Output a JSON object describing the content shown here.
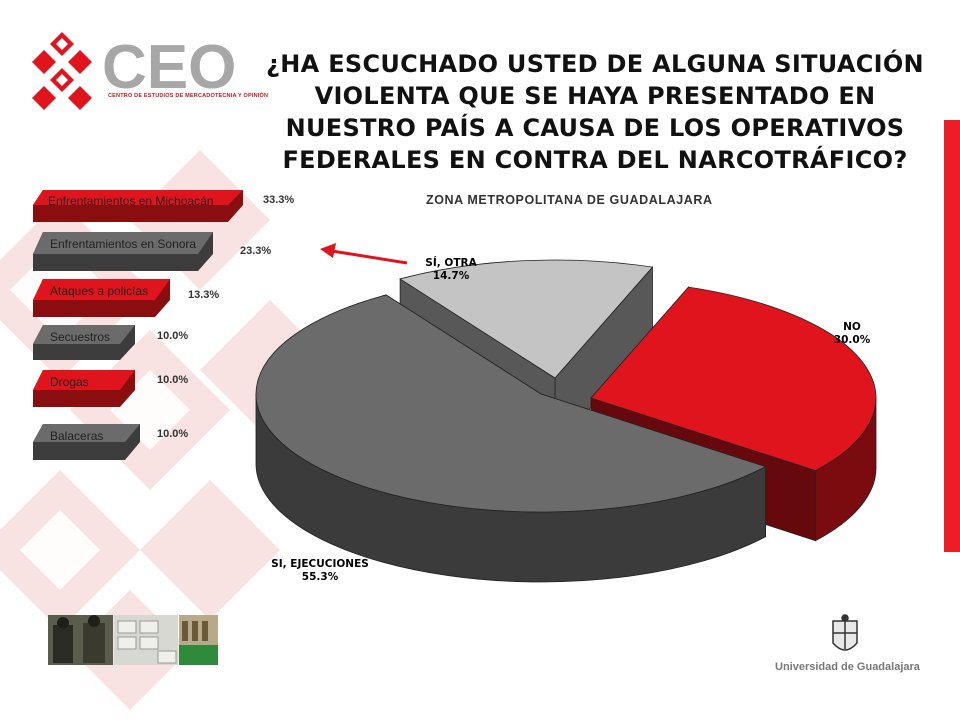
{
  "logo": {
    "text": "CEO",
    "subtitle": "CENTRO DE ESTUDIOS DE MERCADOTECNIA Y OPINIÓN"
  },
  "title": "¿HA ESCUCHADO USTED DE ALGUNA SITUACIÓN VIOLENTA QUE SE HAYA PRESENTADO EN NUESTRO PAÍS A CAUSA DE LOS OPERATIVOS FEDERALES EN CONTRA DEL NARCOTRÁFICO?",
  "subtitle": "ZONA METROPOLITANA DE GUADALAJARA",
  "footer": {
    "university": "Universidad de Guadalajara"
  },
  "colors": {
    "red": "#e0141c",
    "darkgray": "#6b6b6b",
    "lightgray": "#c4c4c4",
    "accent_bar": "#ee1c25"
  },
  "sub_breakdown": [
    {
      "label": "Enfrentamientos en Michoacán",
      "value": "33.3%",
      "color": "red"
    },
    {
      "label": "Enfrentamientos en Sonora",
      "value": "23.3%",
      "color": "gray"
    },
    {
      "label": "Ataques a policías",
      "value": "13.3%",
      "color": "red"
    },
    {
      "label": "Secuestros",
      "value": "10.0%",
      "color": "gray"
    },
    {
      "label": "Drogas",
      "value": "10.0%",
      "color": "red"
    },
    {
      "label": "Balaceras",
      "value": "10.0%",
      "color": "gray"
    }
  ],
  "chart_data": {
    "type": "pie",
    "title": "ZONA METROPOLITANA DE GUADALAJARA",
    "slices": [
      {
        "label": "NO",
        "value": 30.0,
        "display": "30.0%",
        "color": "#e0141c"
      },
      {
        "label": "SI, EJECUCIONES",
        "value": 55.3,
        "display": "55.3%",
        "color": "#6b6b6b"
      },
      {
        "label": "SÍ, OTRA",
        "value": 14.7,
        "display": "14.7%",
        "color": "#c4c4c4"
      }
    ]
  }
}
